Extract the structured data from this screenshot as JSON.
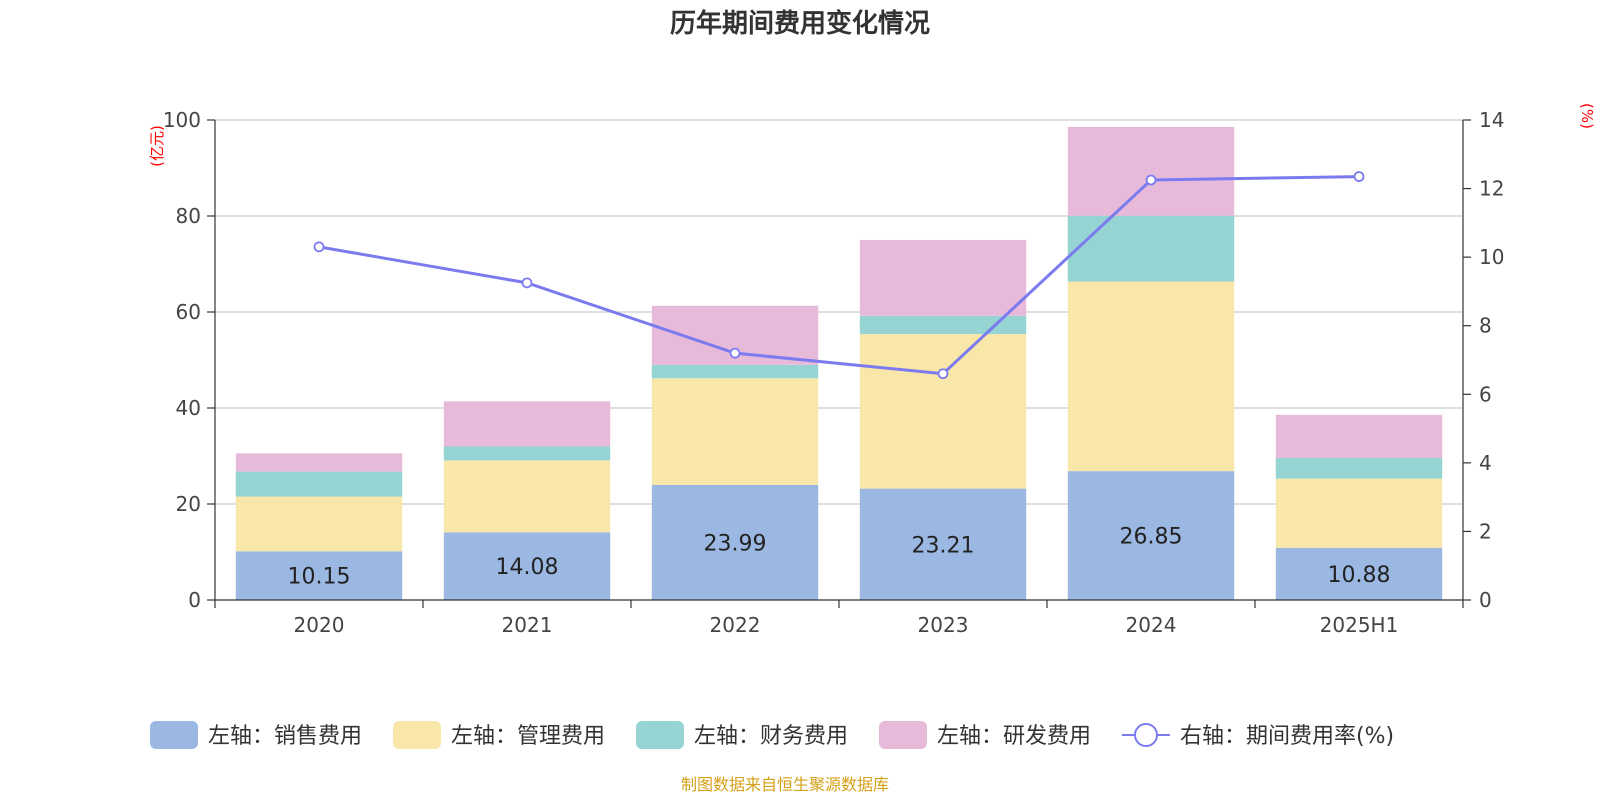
{
  "chart_data": {
    "type": "bar",
    "stacked": true,
    "title": "历年期间费用变化情况",
    "categories": [
      "2020",
      "2021",
      "2022",
      "2023",
      "2024",
      "2025H1"
    ],
    "left_axis": {
      "unit": "(亿元)",
      "ylim": [
        0,
        100
      ],
      "ticks": [
        "0",
        "20",
        "40",
        "60",
        "80",
        "100"
      ]
    },
    "right_axis": {
      "unit": "(%)",
      "ylim": [
        0,
        14
      ],
      "ticks": [
        "0",
        "2",
        "4",
        "6",
        "8",
        "10",
        "12",
        "14"
      ]
    },
    "series": [
      {
        "name": "左轴：销售费用",
        "axis": "left",
        "color": "#9bb8e2",
        "values": [
          10.15,
          14.08,
          23.99,
          23.21,
          26.85,
          10.88
        ],
        "labels": [
          "10.15",
          "14.08",
          "23.99",
          "23.21",
          "26.85",
          "10.88"
        ]
      },
      {
        "name": "左轴：管理费用",
        "axis": "left",
        "color": "#f8e7a8",
        "values": [
          11.4,
          15.0,
          22.2,
          32.2,
          39.5,
          14.4
        ]
      },
      {
        "name": "左轴：财务费用",
        "axis": "left",
        "color": "#96d4d4",
        "values": [
          5.2,
          2.9,
          2.8,
          3.8,
          13.7,
          4.3
        ]
      },
      {
        "name": "左轴：研发费用",
        "axis": "left",
        "color": "#e8bada",
        "values": [
          3.8,
          9.4,
          12.3,
          15.8,
          18.5,
          9.0
        ]
      },
      {
        "name": "右轴：期间费用率(%)",
        "type": "line",
        "axis": "right",
        "color": "#7b7bef",
        "values": [
          10.3,
          9.25,
          7.2,
          6.6,
          12.25,
          12.35
        ]
      }
    ],
    "grid": true,
    "legend_position": "bottom"
  },
  "source_text": "制图数据来自恒生聚源数据库",
  "colors": {
    "unit_text": "#ff0000",
    "source_text": "#d4a017"
  }
}
